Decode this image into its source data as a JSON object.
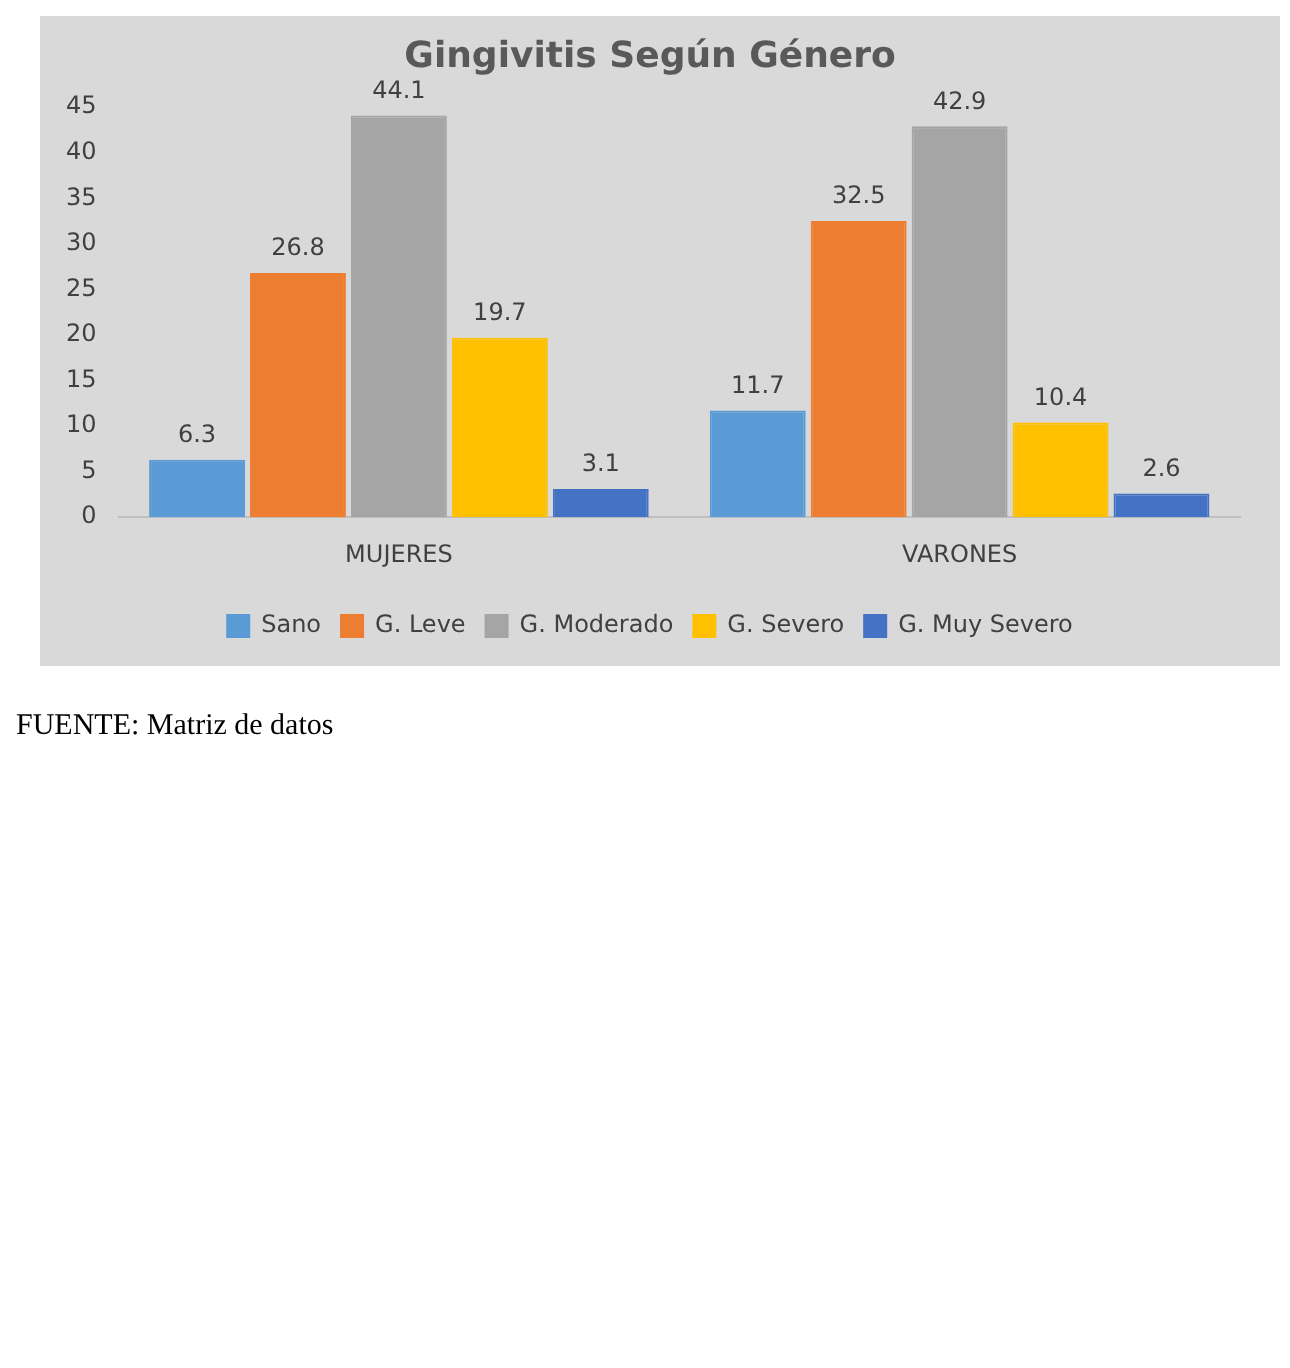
{
  "chart_data": {
    "type": "bar",
    "title": "Gingivitis Según Género",
    "categories": [
      "MUJERES",
      "VARONES"
    ],
    "series": [
      {
        "name": "Sano",
        "color": "#5b9bd5",
        "values": [
          6.3,
          11.7
        ]
      },
      {
        "name": "G. Leve",
        "color": "#ed7d31",
        "values": [
          26.8,
          32.5
        ]
      },
      {
        "name": "G. Moderado",
        "color": "#a5a5a5",
        "values": [
          44.1,
          42.9
        ]
      },
      {
        "name": "G. Severo",
        "color": "#ffc000",
        "values": [
          19.7,
          10.4
        ]
      },
      {
        "name": "G. Muy Severo",
        "color": "#4472c4",
        "values": [
          3.1,
          2.6
        ]
      }
    ],
    "ylim": [
      0,
      45
    ],
    "yticks": [
      0,
      5,
      10,
      15,
      20,
      25,
      30,
      35,
      40,
      45
    ],
    "grid": false,
    "legend": "bottom",
    "data_labels": true,
    "annotations": [
      "FUENTE: Matriz de datos"
    ]
  }
}
